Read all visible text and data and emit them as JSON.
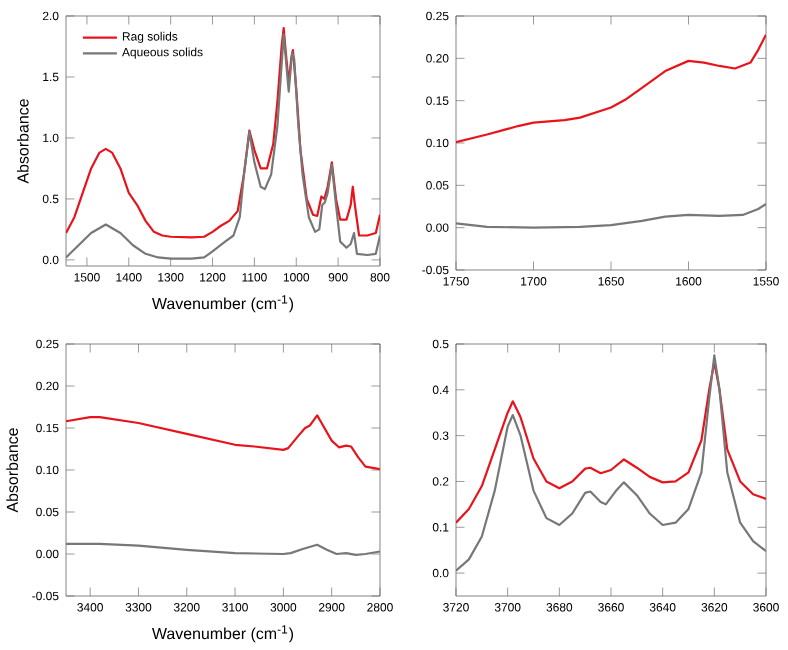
{
  "chart_data": [
    {
      "type": "line",
      "xlabel": "Wavenumber (cm$^{-1}$)",
      "ylabel": "Absorbance",
      "legend": "top left",
      "xlim": [
        1550,
        800
      ],
      "xticks": [
        1500,
        1400,
        1300,
        1200,
        1100,
        1000,
        900,
        800
      ],
      "ylim": [
        -0.05,
        2.0
      ],
      "yticks": [
        {
          "value": 0,
          "label": "0.0"
        },
        {
          "value": 0.5,
          "label": "0.5"
        },
        {
          "value": 1,
          "label": "1.0"
        },
        {
          "value": 1.5,
          "label": "1.5"
        },
        {
          "value": 2,
          "label": "2.0"
        }
      ],
      "series": [
        {
          "name": "Rag solids",
          "color": "#e8141c",
          "x": [
            1550,
            1530,
            1510,
            1490,
            1470,
            1455,
            1440,
            1420,
            1400,
            1380,
            1360,
            1340,
            1320,
            1300,
            1250,
            1220,
            1200,
            1180,
            1160,
            1140,
            1125,
            1112,
            1100,
            1085,
            1070,
            1055,
            1045,
            1035,
            1030,
            1025,
            1018,
            1012,
            1008,
            1000,
            990,
            975,
            960,
            950,
            940,
            933,
            925,
            915,
            905,
            895,
            880,
            870,
            865,
            860,
            850,
            830,
            810,
            800
          ],
          "values": [
            0.22,
            0.35,
            0.55,
            0.75,
            0.88,
            0.91,
            0.88,
            0.75,
            0.55,
            0.45,
            0.32,
            0.23,
            0.2,
            0.19,
            0.185,
            0.19,
            0.23,
            0.28,
            0.32,
            0.4,
            0.7,
            1.06,
            0.9,
            0.75,
            0.75,
            0.95,
            1.3,
            1.75,
            1.9,
            1.7,
            1.45,
            1.65,
            1.72,
            1.4,
            0.9,
            0.5,
            0.37,
            0.36,
            0.52,
            0.5,
            0.6,
            0.8,
            0.5,
            0.33,
            0.33,
            0.45,
            0.6,
            0.45,
            0.2,
            0.2,
            0.22,
            0.37
          ]
        },
        {
          "name": "Aqueous solids",
          "color": "#777777",
          "x": [
            1550,
            1520,
            1490,
            1455,
            1420,
            1390,
            1360,
            1330,
            1300,
            1250,
            1220,
            1200,
            1170,
            1150,
            1135,
            1125,
            1112,
            1100,
            1085,
            1075,
            1060,
            1045,
            1035,
            1030,
            1025,
            1018,
            1010,
            1005,
            995,
            985,
            970,
            955,
            945,
            938,
            932,
            925,
            915,
            905,
            895,
            880,
            870,
            862,
            855,
            830,
            810,
            800
          ],
          "values": [
            0.02,
            0.12,
            0.22,
            0.29,
            0.22,
            0.12,
            0.05,
            0.02,
            0.01,
            0.01,
            0.02,
            0.07,
            0.15,
            0.2,
            0.35,
            0.7,
            1.05,
            0.8,
            0.6,
            0.58,
            0.7,
            1.1,
            1.6,
            1.85,
            1.65,
            1.38,
            1.7,
            1.65,
            1.1,
            0.7,
            0.35,
            0.23,
            0.25,
            0.45,
            0.47,
            0.55,
            0.78,
            0.45,
            0.15,
            0.1,
            0.13,
            0.22,
            0.05,
            0.04,
            0.05,
            0.2
          ]
        }
      ]
    },
    {
      "type": "line",
      "xlim": [
        1750,
        1550
      ],
      "xticks": [
        1750,
        1700,
        1650,
        1600,
        1550
      ],
      "ylim": [
        -0.05,
        0.25
      ],
      "yticks": [
        {
          "value": -0.05,
          "label": "-0.05"
        },
        {
          "value": 0,
          "label": "0.00"
        },
        {
          "value": 0.05,
          "label": "0.05"
        },
        {
          "value": 0.1,
          "label": "0.10"
        },
        {
          "value": 0.15,
          "label": "0.15"
        },
        {
          "value": 0.2,
          "label": "0.20"
        },
        {
          "value": 0.25,
          "label": "0.25"
        }
      ],
      "series": [
        {
          "color": "#e8141c",
          "x": [
            1750,
            1730,
            1710,
            1700,
            1680,
            1670,
            1650,
            1640,
            1630,
            1615,
            1600,
            1590,
            1580,
            1570,
            1560,
            1555,
            1550
          ],
          "values": [
            0.101,
            0.11,
            0.12,
            0.124,
            0.127,
            0.13,
            0.142,
            0.152,
            0.165,
            0.185,
            0.197,
            0.195,
            0.191,
            0.188,
            0.195,
            0.21,
            0.228
          ]
        },
        {
          "color": "#777777",
          "x": [
            1750,
            1730,
            1700,
            1670,
            1650,
            1630,
            1615,
            1600,
            1580,
            1565,
            1555,
            1550
          ],
          "values": [
            0.005,
            0.001,
            0.0,
            0.001,
            0.003,
            0.008,
            0.013,
            0.015,
            0.014,
            0.015,
            0.022,
            0.028
          ]
        }
      ]
    },
    {
      "type": "line",
      "xlabel": "Wavenumber (cm$^{-1}$)",
      "ylabel": "Absorbance",
      "xlim": [
        3450,
        2800
      ],
      "xticks": [
        3400,
        3300,
        3200,
        3100,
        3000,
        2900,
        2800
      ],
      "ylim": [
        -0.05,
        0.25
      ],
      "yticks": [
        {
          "value": -0.05,
          "label": "-0.05"
        },
        {
          "value": 0,
          "label": "0.00"
        },
        {
          "value": 0.05,
          "label": "0.05"
        },
        {
          "value": 0.1,
          "label": "0.10"
        },
        {
          "value": 0.15,
          "label": "0.15"
        },
        {
          "value": 0.2,
          "label": "0.20"
        },
        {
          "value": 0.25,
          "label": "0.25"
        }
      ],
      "series": [
        {
          "color": "#e8141c",
          "x": [
            3450,
            3400,
            3380,
            3300,
            3200,
            3100,
            3060,
            3000,
            2990,
            2970,
            2955,
            2945,
            2930,
            2920,
            2900,
            2885,
            2870,
            2860,
            2845,
            2830,
            2800
          ],
          "values": [
            0.158,
            0.163,
            0.163,
            0.156,
            0.143,
            0.13,
            0.128,
            0.124,
            0.126,
            0.14,
            0.15,
            0.153,
            0.165,
            0.155,
            0.135,
            0.127,
            0.129,
            0.128,
            0.115,
            0.104,
            0.101
          ]
        },
        {
          "color": "#777777",
          "x": [
            3450,
            3380,
            3300,
            3200,
            3100,
            3000,
            2985,
            2960,
            2930,
            2910,
            2890,
            2870,
            2850,
            2830,
            2800
          ],
          "values": [
            0.012,
            0.012,
            0.01,
            0.005,
            0.001,
            0.0,
            0.001,
            0.006,
            0.011,
            0.005,
            0.0,
            0.001,
            -0.001,
            0.0,
            0.003
          ]
        }
      ]
    },
    {
      "type": "line",
      "xlim": [
        3720,
        3600
      ],
      "xticks": [
        3720,
        3700,
        3680,
        3660,
        3640,
        3620,
        3600
      ],
      "ylim": [
        -0.05,
        0.5
      ],
      "yticks": [
        {
          "value": 0,
          "label": "0.0"
        },
        {
          "value": 0.1,
          "label": "0.1"
        },
        {
          "value": 0.2,
          "label": "0.2"
        },
        {
          "value": 0.3,
          "label": "0.3"
        },
        {
          "value": 0.4,
          "label": "0.4"
        },
        {
          "value": 0.5,
          "label": "0.5"
        }
      ],
      "series": [
        {
          "color": "#e8141c",
          "x": [
            3720,
            3715,
            3710,
            3705,
            3700,
            3698,
            3695,
            3690,
            3685,
            3680,
            3675,
            3670,
            3668,
            3664,
            3660,
            3655,
            3650,
            3645,
            3640,
            3635,
            3630,
            3625,
            3622,
            3620,
            3618,
            3615,
            3610,
            3605,
            3600
          ],
          "values": [
            0.11,
            0.14,
            0.19,
            0.27,
            0.35,
            0.375,
            0.34,
            0.25,
            0.2,
            0.185,
            0.2,
            0.228,
            0.23,
            0.218,
            0.225,
            0.248,
            0.23,
            0.21,
            0.198,
            0.2,
            0.22,
            0.29,
            0.4,
            0.46,
            0.4,
            0.27,
            0.2,
            0.172,
            0.162
          ]
        },
        {
          "color": "#777777",
          "x": [
            3720,
            3715,
            3710,
            3705,
            3700,
            3698,
            3695,
            3690,
            3685,
            3680,
            3675,
            3670,
            3668,
            3664,
            3662,
            3658,
            3655,
            3650,
            3645,
            3640,
            3635,
            3630,
            3625,
            3622,
            3620,
            3618,
            3615,
            3610,
            3605,
            3600
          ],
          "values": [
            0.005,
            0.03,
            0.08,
            0.18,
            0.32,
            0.345,
            0.3,
            0.18,
            0.12,
            0.105,
            0.13,
            0.175,
            0.178,
            0.155,
            0.15,
            0.18,
            0.198,
            0.17,
            0.13,
            0.105,
            0.11,
            0.14,
            0.22,
            0.38,
            0.475,
            0.4,
            0.22,
            0.11,
            0.07,
            0.048
          ]
        }
      ]
    }
  ]
}
